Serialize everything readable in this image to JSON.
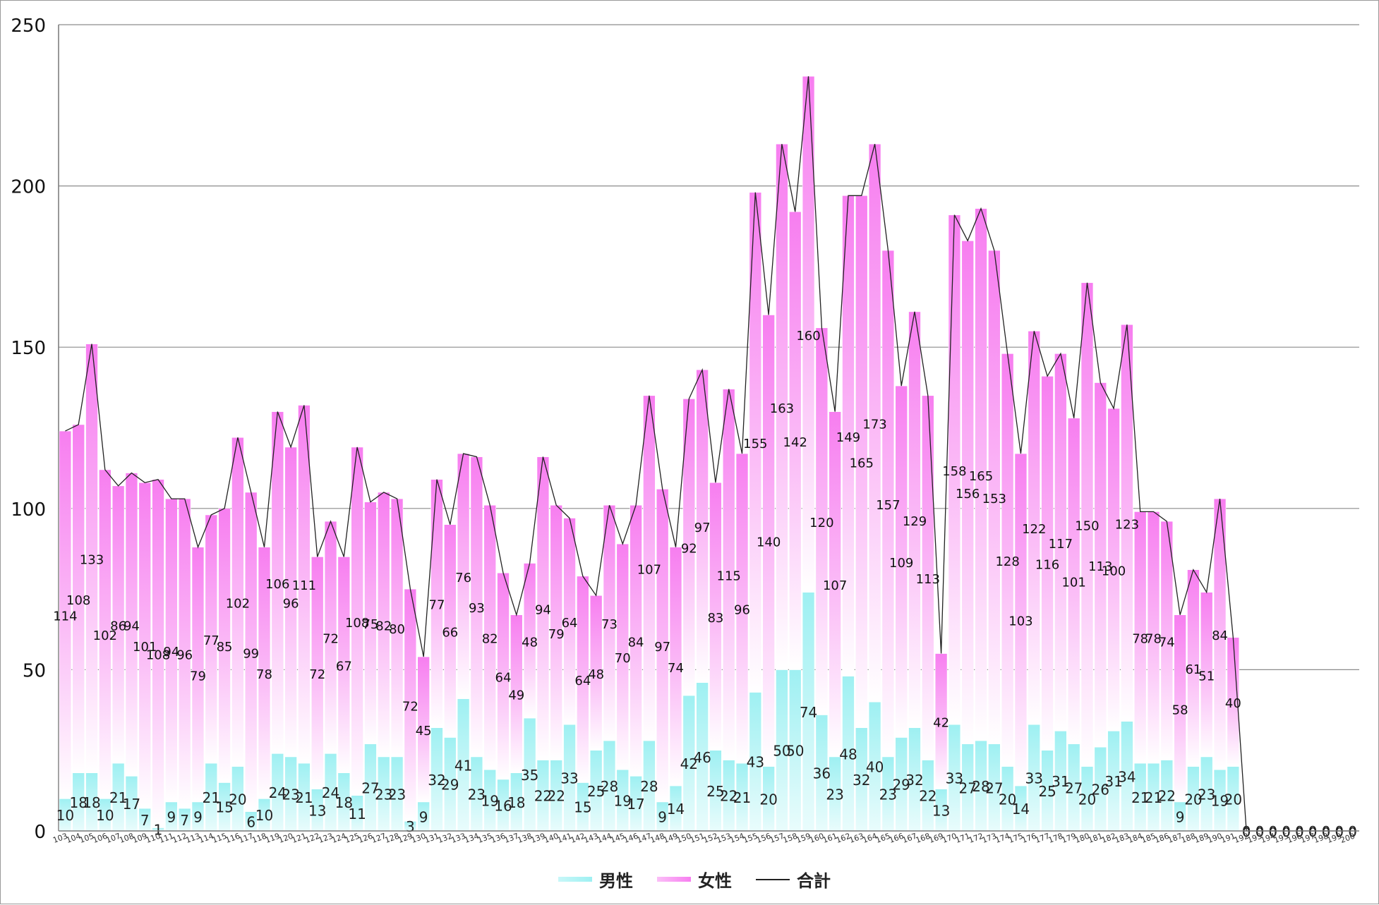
{
  "chart_data": {
    "type": "bar",
    "ylim": [
      0,
      250
    ],
    "yticks": [
      0,
      50,
      100,
      150,
      200,
      250
    ],
    "grid": true,
    "legend_position": "bottom",
    "categories": [
      "103",
      "104",
      "105",
      "106",
      "107",
      "108",
      "109",
      "110",
      "111",
      "112",
      "113",
      "114",
      "115",
      "116",
      "117",
      "118",
      "119",
      "120",
      "121",
      "122",
      "123",
      "124",
      "125",
      "126",
      "127",
      "128",
      "129",
      "130",
      "131",
      "132",
      "133",
      "134",
      "135",
      "136",
      "137",
      "138",
      "139",
      "140",
      "141",
      "142",
      "143",
      "144",
      "145",
      "146",
      "147",
      "148",
      "149",
      "150",
      "151",
      "152",
      "153",
      "154",
      "155",
      "156",
      "157",
      "158",
      "159",
      "160",
      "161",
      "162",
      "163",
      "164",
      "165",
      "166",
      "167",
      "168",
      "169",
      "170",
      "171",
      "172",
      "173",
      "174",
      "175",
      "176",
      "177",
      "178",
      "179",
      "180",
      "181",
      "182",
      "183",
      "184",
      "185",
      "186",
      "187",
      "188",
      "189",
      "190",
      "191",
      "192",
      "193",
      "194",
      "195",
      "196",
      "197",
      "198",
      "199",
      "200"
    ],
    "series": [
      {
        "name": "男性",
        "values": [
          10,
          18,
          18,
          10,
          21,
          17,
          7,
          1,
          9,
          7,
          9,
          21,
          15,
          20,
          6,
          10,
          24,
          23,
          21,
          13,
          24,
          18,
          11,
          27,
          23,
          23,
          3,
          9,
          32,
          29,
          41,
          23,
          19,
          16,
          18,
          35,
          22,
          22,
          33,
          15,
          25,
          28,
          19,
          17,
          28,
          9,
          14,
          42,
          46,
          25,
          22,
          21,
          43,
          20,
          50,
          50,
          74,
          36,
          23,
          48,
          32,
          40,
          23,
          29,
          32,
          22,
          13,
          33,
          27,
          28,
          27,
          20,
          14,
          33,
          25,
          31,
          27,
          20,
          26,
          31,
          34,
          21,
          21,
          22,
          9,
          20,
          23,
          19,
          20,
          0,
          0,
          0,
          0,
          0,
          0,
          0,
          0,
          0
        ]
      },
      {
        "name": "女性",
        "values": [
          114,
          108,
          133,
          102,
          86,
          94,
          101,
          108,
          94,
          96,
          79,
          77,
          85,
          102,
          99,
          78,
          106,
          96,
          111,
          72,
          72,
          67,
          108,
          75,
          82,
          80,
          72,
          45,
          77,
          66,
          76,
          93,
          82,
          64,
          49,
          48,
          94,
          79,
          64,
          64,
          48,
          73,
          70,
          84,
          107,
          97,
          74,
          92,
          97,
          83,
          115,
          96,
          155,
          140,
          163,
          142,
          160,
          120,
          107,
          149,
          165,
          173,
          157,
          109,
          129,
          113,
          42,
          158,
          156,
          165,
          153,
          128,
          103,
          122,
          116,
          117,
          101,
          150,
          113,
          100,
          123,
          78,
          78,
          74,
          58,
          61,
          51,
          84,
          40,
          0,
          0,
          0,
          0,
          0,
          0,
          0,
          0,
          0
        ]
      },
      {
        "name": "合計",
        "type": "line"
      }
    ],
    "colors": {
      "male": "#9ef0f2",
      "female": "#f77ef0",
      "total_line": "#222222"
    }
  }
}
